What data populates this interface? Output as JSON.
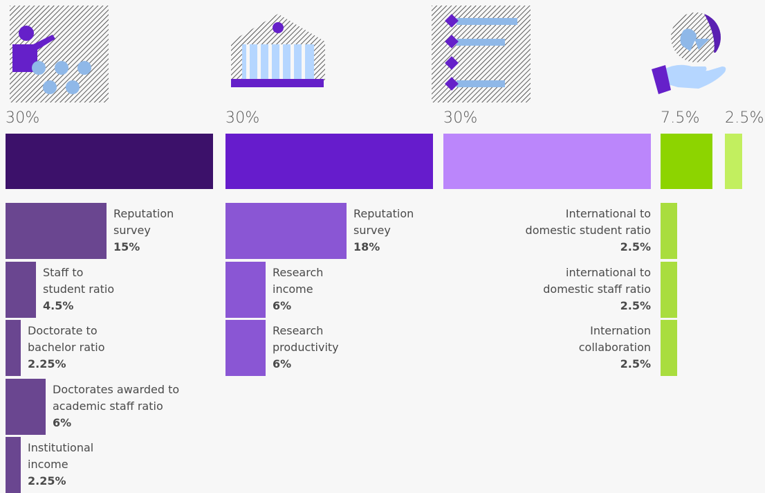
{
  "colors": {
    "teaching": "#3c116a",
    "research": "#661ccc",
    "citations": "#bb86fb",
    "international": "#8dd400",
    "industry": "#c2ef5f",
    "teaching_sub": "#6a4690",
    "research_sub": "#8a56d4",
    "intl_sub": "#a9dd3e"
  },
  "chart_data": {
    "type": "bar",
    "categories": [
      "",
      "",
      "",
      "",
      ""
    ],
    "pillars": [
      {
        "percent_label": "30%",
        "value": 30
      },
      {
        "percent_label": "30%",
        "value": 30
      },
      {
        "percent_label": "30%",
        "value": 30
      },
      {
        "percent_label": "7.5%",
        "value": 7.5
      },
      {
        "percent_label": "2.5%",
        "value": 2.5
      }
    ],
    "breakdown": [
      {
        "pillar": 0,
        "items": [
          {
            "label_lines": [
              "Reputation",
              "survey"
            ],
            "percent": "15%",
            "value": 15
          },
          {
            "label_lines": [
              "Staff to",
              "student ratio"
            ],
            "percent": "4.5%",
            "value": 4.5
          },
          {
            "label_lines": [
              "Doctorate to",
              "bachelor ratio"
            ],
            "percent": "2.25%",
            "value": 2.25
          },
          {
            "label_lines": [
              "Doctorates awarded to",
              "academic staff ratio"
            ],
            "percent": "6%",
            "value": 6
          },
          {
            "label_lines": [
              "Institutional",
              "income"
            ],
            "percent": "2.25%",
            "value": 2.25
          }
        ]
      },
      {
        "pillar": 1,
        "items": [
          {
            "label_lines": [
              "Reputation",
              "survey"
            ],
            "percent": "18%",
            "value": 18
          },
          {
            "label_lines": [
              "Research",
              "income"
            ],
            "percent": "6%",
            "value": 6
          },
          {
            "label_lines": [
              "Research",
              "productivity"
            ],
            "percent": "6%",
            "value": 6
          }
        ]
      },
      {
        "pillar": 3,
        "items": [
          {
            "label_lines": [
              "International to",
              "domestic student ratio"
            ],
            "percent": "2.5%",
            "value": 2.5
          },
          {
            "label_lines": [
              "international to",
              "domestic staff ratio"
            ],
            "percent": "2.5%",
            "value": 2.5
          },
          {
            "label_lines": [
              "Internation",
              "collaboration"
            ],
            "percent": "2.5%",
            "value": 2.5
          }
        ]
      }
    ]
  },
  "icons": [
    "teacher-presentation-icon",
    "university-building-icon",
    "citation-list-icon",
    "globe-in-hand-icon"
  ]
}
